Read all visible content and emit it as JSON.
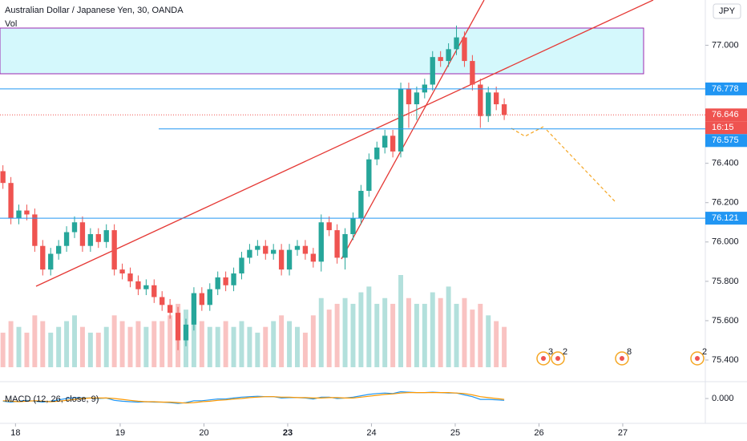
{
  "chart_data": {
    "type": "candlestick",
    "title": "Australian Dollar / Japanese Yen, 30, OANDA",
    "volume_label": "Vol",
    "currency": "JPY",
    "up_color": "#26a69a",
    "down_color": "#ef5350",
    "xlim": [
      -0.435,
      7.986
    ],
    "ylim": [
      75.29,
      77.23
    ],
    "xticks": [
      {
        "value": -0.25,
        "label": "18"
      },
      {
        "value": 1,
        "label": "19"
      },
      {
        "value": 2,
        "label": "20"
      },
      {
        "value": 3,
        "label": "23"
      },
      {
        "value": 4,
        "label": "24"
      },
      {
        "value": 5,
        "label": "25"
      },
      {
        "value": 6,
        "label": "26"
      },
      {
        "value": 7,
        "label": "27"
      }
    ],
    "yticks": [
      {
        "value": 77,
        "label": "77.000"
      },
      {
        "value": 76.4,
        "label": "76.400"
      },
      {
        "value": 76.2,
        "label": "76.200"
      },
      {
        "value": 76,
        "label": "76.000"
      },
      {
        "value": 75.8,
        "label": "75.800"
      },
      {
        "value": 75.6,
        "label": "75.600"
      },
      {
        "value": 75.4,
        "label": "75.400"
      }
    ],
    "x": [
      -0.4,
      -0.305,
      -0.21,
      -0.115,
      -0.02,
      0.075,
      0.17,
      0.265,
      0.36,
      0.455,
      0.55,
      0.645,
      0.74,
      0.835,
      0.93,
      1.025,
      1.12,
      1.215,
      1.31,
      1.405,
      1.5,
      1.595,
      1.69,
      1.785,
      1.88,
      1.975,
      2.07,
      2.165,
      2.26,
      2.355,
      2.45,
      2.545,
      2.64,
      2.735,
      2.83,
      2.925,
      3.02,
      3.115,
      3.21,
      3.305,
      3.4,
      3.495,
      3.59,
      3.685,
      3.78,
      3.875,
      3.97,
      4.065,
      4.16,
      4.255,
      4.35,
      4.445,
      4.54,
      4.635,
      4.73,
      4.825,
      4.92,
      5.015,
      5.11,
      5.205,
      5.3,
      5.395,
      5.49,
      5.585
    ],
    "open": [
      76.36,
      76.3,
      76.12,
      76.16,
      76.14,
      75.98,
      75.86,
      75.94,
      75.98,
      76.05,
      76.1,
      75.98,
      76.04,
      76.0,
      76.06,
      75.86,
      75.84,
      75.8,
      75.76,
      75.78,
      75.72,
      75.68,
      75.64,
      75.5,
      75.58,
      75.74,
      75.68,
      75.76,
      75.82,
      75.78,
      75.84,
      75.92,
      75.96,
      75.98,
      75.94,
      75.96,
      75.86,
      75.96,
      75.98,
      75.94,
      75.9,
      76.1,
      76.06,
      75.92,
      76.04,
      76.12,
      76.26,
      76.42,
      76.48,
      76.54,
      76.46,
      76.78,
      76.7,
      76.76,
      76.8,
      76.94,
      76.92,
      76.98,
      77.04,
      76.92,
      76.8,
      76.64,
      76.76,
      76.7
    ],
    "high": [
      76.39,
      76.33,
      76.19,
      76.19,
      76.17,
      76.01,
      75.97,
      76.01,
      76.08,
      76.13,
      76.13,
      76.07,
      76.07,
      76.09,
      76.09,
      75.89,
      75.87,
      75.83,
      75.81,
      75.81,
      75.75,
      75.71,
      75.67,
      75.61,
      75.77,
      75.77,
      75.79,
      75.85,
      75.85,
      75.87,
      75.95,
      75.99,
      76.01,
      76.01,
      75.99,
      75.99,
      75.99,
      76.01,
      76.01,
      75.97,
      76.14,
      76.13,
      76.09,
      76.07,
      76.15,
      76.29,
      76.45,
      76.51,
      76.57,
      76.57,
      76.81,
      76.81,
      76.79,
      76.83,
      76.97,
      76.97,
      77.01,
      77.1,
      77.07,
      76.95,
      76.83,
      76.79,
      76.79,
      76.73
    ],
    "low": [
      76.27,
      76.09,
      76.09,
      76.11,
      75.95,
      75.83,
      75.83,
      75.91,
      75.95,
      76.02,
      75.95,
      75.95,
      75.97,
      75.97,
      75.83,
      75.81,
      75.77,
      75.73,
      75.73,
      75.69,
      75.65,
      75.61,
      75.45,
      75.47,
      75.55,
      75.65,
      75.65,
      75.73,
      75.75,
      75.75,
      75.81,
      75.89,
      75.93,
      75.91,
      75.91,
      75.83,
      75.83,
      75.93,
      75.91,
      75.87,
      75.85,
      76.03,
      75.89,
      75.86,
      76.01,
      76.09,
      76.23,
      76.39,
      76.45,
      76.43,
      76.43,
      76.58,
      76.62,
      76.73,
      76.77,
      76.89,
      76.89,
      76.95,
      76.89,
      76.77,
      76.58,
      76.61,
      76.67,
      76.62
    ],
    "close": [
      76.3,
      76.12,
      76.16,
      76.14,
      75.98,
      75.86,
      75.94,
      75.98,
      76.05,
      76.1,
      75.98,
      76.04,
      76.0,
      76.06,
      75.86,
      75.84,
      75.8,
      75.76,
      75.78,
      75.72,
      75.68,
      75.64,
      75.5,
      75.58,
      75.74,
      75.68,
      75.76,
      75.82,
      75.78,
      75.84,
      75.92,
      75.96,
      75.98,
      75.94,
      75.96,
      75.86,
      75.96,
      75.98,
      75.94,
      75.9,
      76.1,
      76.06,
      75.92,
      76.04,
      76.12,
      76.26,
      76.42,
      76.48,
      76.54,
      76.46,
      76.78,
      76.7,
      76.76,
      76.8,
      76.94,
      76.92,
      76.98,
      77.04,
      76.92,
      76.8,
      76.64,
      76.76,
      76.7,
      76.646
    ],
    "volume": [
      30,
      40,
      35,
      30,
      45,
      40,
      30,
      35,
      40,
      45,
      35,
      30,
      30,
      35,
      45,
      40,
      35,
      40,
      35,
      40,
      40,
      45,
      55,
      50,
      45,
      40,
      35,
      35,
      40,
      35,
      40,
      35,
      30,
      35,
      40,
      45,
      40,
      35,
      30,
      45,
      60,
      50,
      55,
      60,
      55,
      65,
      70,
      55,
      60,
      55,
      80,
      60,
      55,
      55,
      65,
      60,
      70,
      55,
      60,
      50,
      55,
      45,
      40,
      35
    ],
    "levels": [
      {
        "value": 76.778,
        "label": "76.778",
        "color": "#2196f3"
      },
      {
        "value": 76.575,
        "label": "76.575",
        "color": "#2196f3",
        "start": 1.46
      },
      {
        "value": 76.121,
        "label": "76.121",
        "color": "#2196f3"
      }
    ],
    "last_price": {
      "value": 76.646,
      "label": "76.646",
      "color": "#ef5350"
    },
    "countdown": "16:15",
    "events": [
      "3",
      "2",
      "8",
      "2"
    ],
    "macd": {
      "label": "MACD (12, 26, close, 9)",
      "ylim": [
        -0.3,
        0.3
      ],
      "yticks": [
        {
          "value": 0,
          "label": "0.000"
        }
      ],
      "macd_color": "#2196f3",
      "signal_color": "#ff9800",
      "macd": [
        -0.06,
        -0.08,
        -0.06,
        -0.04,
        -0.06,
        -0.08,
        -0.06,
        -0.03,
        0.0,
        0.02,
        0.01,
        0.01,
        0.0,
        0.01,
        -0.04,
        -0.06,
        -0.07,
        -0.08,
        -0.07,
        -0.08,
        -0.08,
        -0.09,
        -0.11,
        -0.09,
        -0.05,
        -0.05,
        -0.03,
        -0.01,
        -0.01,
        0.01,
        0.03,
        0.04,
        0.05,
        0.04,
        0.04,
        0.01,
        0.02,
        0.02,
        0.01,
        -0.01,
        0.03,
        0.03,
        0.0,
        0.01,
        0.03,
        0.06,
        0.09,
        0.11,
        0.12,
        0.11,
        0.15,
        0.14,
        0.13,
        0.13,
        0.14,
        0.13,
        0.12,
        0.12,
        0.08,
        0.04,
        -0.02,
        -0.02,
        -0.03,
        -0.04
      ],
      "signal": [
        -0.05,
        -0.06,
        -0.07,
        -0.06,
        -0.05,
        -0.06,
        -0.07,
        -0.06,
        -0.04,
        -0.02,
        0.0,
        0.01,
        0.01,
        0.01,
        0.0,
        -0.02,
        -0.04,
        -0.06,
        -0.07,
        -0.07,
        -0.08,
        -0.08,
        -0.09,
        -0.1,
        -0.09,
        -0.07,
        -0.06,
        -0.04,
        -0.03,
        -0.01,
        0.0,
        0.02,
        0.03,
        0.04,
        0.04,
        0.03,
        0.03,
        0.02,
        0.02,
        0.01,
        0.01,
        0.02,
        0.02,
        0.01,
        0.01,
        0.03,
        0.05,
        0.07,
        0.09,
        0.1,
        0.12,
        0.13,
        0.13,
        0.13,
        0.13,
        0.13,
        0.13,
        0.12,
        0.11,
        0.08,
        0.04,
        0.02,
        0.0,
        -0.02
      ]
    }
  }
}
